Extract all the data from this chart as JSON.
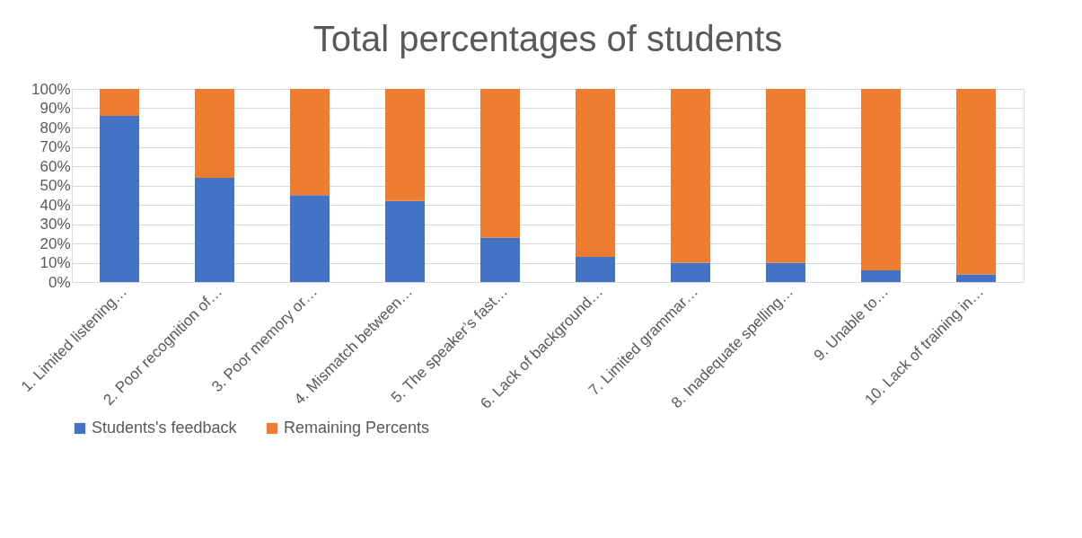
{
  "chart_data": {
    "type": "bar",
    "title": "Total percentages of students",
    "stacked": true,
    "categories": [
      "1. Limited listening…",
      "2. Poor recognition of…",
      "3. Poor memory or…",
      "4. Mismatch between…",
      "5. The speaker’s fast…",
      "6. Lack of background…",
      "7. Limited grammar…",
      "8. Inadequate spelling…",
      "9. Unable to…",
      "10. Lack of training in…"
    ],
    "series": [
      {
        "name": "Students's feedback",
        "color": "#4472c4",
        "values": [
          86,
          54,
          45,
          42,
          23,
          13,
          10,
          10,
          6,
          4
        ]
      },
      {
        "name": "Remaining Percents",
        "color": "#ed7d31",
        "values": [
          14,
          46,
          55,
          58,
          77,
          87,
          90,
          90,
          94,
          96
        ]
      }
    ],
    "ylim": [
      0,
      100
    ],
    "yticks": [
      {
        "value": 0,
        "label": "0%"
      },
      {
        "value": 10,
        "label": "10%"
      },
      {
        "value": 20,
        "label": "20%"
      },
      {
        "value": 30,
        "label": "30%"
      },
      {
        "value": 40,
        "label": "40%"
      },
      {
        "value": 50,
        "label": "50%"
      },
      {
        "value": 60,
        "label": "60%"
      },
      {
        "value": 70,
        "label": "70%"
      },
      {
        "value": 80,
        "label": "80%"
      },
      {
        "value": 90,
        "label": "90%"
      },
      {
        "value": 100,
        "label": "100%"
      }
    ],
    "grid": "y",
    "legend": "bottom"
  }
}
